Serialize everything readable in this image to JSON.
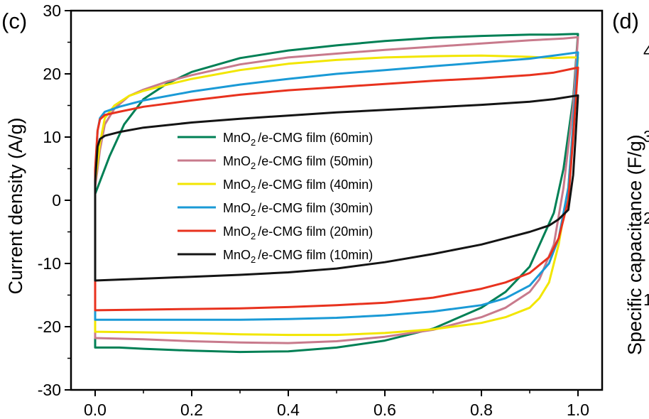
{
  "chart_data": {
    "type": "line",
    "panel_label": "(c)",
    "next_panel": {
      "label": "(d)",
      "ylabel": "Specific capacitance (F/g)",
      "ytick_fragments": [
        "4",
        "3",
        "2",
        "1"
      ]
    },
    "xlabel": "",
    "ylabel": "Current density (A/g)",
    "xlim": [
      -0.05,
      1.05
    ],
    "ylim": [
      -30,
      30
    ],
    "xticks": [
      0.0,
      0.2,
      0.4,
      0.6,
      0.8,
      1.0
    ],
    "xtick_labels": [
      "0.0",
      "0.2",
      "0.4",
      "0.6",
      "0.8",
      "1.0"
    ],
    "yticks": [
      -30,
      -20,
      -10,
      0,
      10,
      20,
      30
    ],
    "ytick_labels": [
      "-30",
      "-20",
      "-10",
      "0",
      "10",
      "20",
      "30"
    ],
    "legend_position": "center-left",
    "series": [
      {
        "name_main": "MnO",
        "name_sub": "2",
        "name_rest": "/e-CMG film (60min)",
        "color": "#008055",
        "upper": {
          "x": [
            0.0,
            0.01,
            0.03,
            0.06,
            0.1,
            0.15,
            0.2,
            0.3,
            0.4,
            0.5,
            0.6,
            0.7,
            0.8,
            0.9,
            0.95,
            0.99,
            1.0
          ],
          "y": [
            1,
            3,
            7,
            12,
            16,
            18.5,
            20.3,
            22.5,
            23.7,
            24.5,
            25.2,
            25.7,
            26.0,
            26.2,
            26.2,
            26.3,
            26.3
          ]
        },
        "lower": {
          "x": [
            1.0,
            0.99,
            0.97,
            0.95,
            0.9,
            0.85,
            0.8,
            0.7,
            0.6,
            0.5,
            0.4,
            0.3,
            0.2,
            0.1,
            0.05,
            0.0,
            0.0
          ],
          "y": [
            26.3,
            16,
            5,
            -2,
            -10.5,
            -14.5,
            -17,
            -20.3,
            -22.2,
            -23.3,
            -23.9,
            -24.0,
            -23.8,
            -23.5,
            -23.3,
            -23.3,
            1
          ]
        }
      },
      {
        "name_main": "MnO",
        "name_sub": "2",
        "name_rest": "/e-CMG film (50min)",
        "color": "#c87a8c",
        "upper": {
          "x": [
            0.0,
            0.01,
            0.02,
            0.04,
            0.07,
            0.1,
            0.15,
            0.2,
            0.3,
            0.4,
            0.5,
            0.6,
            0.7,
            0.8,
            0.9,
            0.97,
            1.0
          ],
          "y": [
            2,
            8,
            12,
            14.5,
            16.5,
            17.5,
            18.8,
            19.8,
            21.5,
            22.6,
            23.2,
            23.8,
            24.3,
            24.8,
            25.3,
            25.6,
            25.8
          ]
        },
        "lower": {
          "x": [
            1.0,
            0.99,
            0.97,
            0.95,
            0.92,
            0.9,
            0.85,
            0.8,
            0.7,
            0.6,
            0.5,
            0.4,
            0.3,
            0.2,
            0.1,
            0.0,
            0.0
          ],
          "y": [
            25.8,
            15,
            2,
            -7,
            -12.5,
            -14.5,
            -17,
            -18.5,
            -20.5,
            -21.6,
            -22.3,
            -22.6,
            -22.5,
            -22.3,
            -22.0,
            -21.8,
            2
          ]
        }
      },
      {
        "name_main": "MnO",
        "name_sub": "2",
        "name_rest": "/e-CMG film (40min)",
        "color": "#f2e600",
        "upper": {
          "x": [
            0.0,
            0.01,
            0.02,
            0.04,
            0.07,
            0.1,
            0.15,
            0.2,
            0.3,
            0.4,
            0.5,
            0.6,
            0.7,
            0.8,
            0.9,
            0.95,
            0.98,
            1.0
          ],
          "y": [
            3,
            9,
            13,
            15,
            16.5,
            17.3,
            18.3,
            19.2,
            20.6,
            21.6,
            22.2,
            22.6,
            22.8,
            22.9,
            22.7,
            22.5,
            22.6,
            22.6
          ]
        },
        "lower": {
          "x": [
            1.0,
            0.99,
            0.98,
            0.96,
            0.94,
            0.92,
            0.9,
            0.85,
            0.8,
            0.7,
            0.6,
            0.5,
            0.4,
            0.3,
            0.2,
            0.1,
            0.0,
            0.0
          ],
          "y": [
            22.6,
            12,
            2,
            -7,
            -13,
            -15.5,
            -17,
            -18.5,
            -19.4,
            -20.4,
            -21.0,
            -21.3,
            -21.3,
            -21.2,
            -21.0,
            -20.9,
            -20.8,
            3
          ]
        }
      },
      {
        "name_main": "MnO",
        "name_sub": "2",
        "name_rest": "/e-CMG film (30min)",
        "color": "#1a9ad6",
        "upper": {
          "x": [
            0.0,
            0.005,
            0.01,
            0.02,
            0.05,
            0.1,
            0.2,
            0.3,
            0.4,
            0.5,
            0.6,
            0.7,
            0.8,
            0.9,
            0.95,
            1.0
          ],
          "y": [
            4,
            11,
            13,
            14,
            14.8,
            15.8,
            17.2,
            18.3,
            19.2,
            20.0,
            20.6,
            21.2,
            21.8,
            22.4,
            22.9,
            23.4
          ]
        },
        "lower": {
          "x": [
            1.0,
            0.99,
            0.98,
            0.96,
            0.94,
            0.9,
            0.85,
            0.8,
            0.7,
            0.6,
            0.5,
            0.4,
            0.3,
            0.2,
            0.1,
            0.0,
            0.0
          ],
          "y": [
            23.4,
            12,
            2,
            -6,
            -10,
            -13.5,
            -15.5,
            -16.6,
            -17.6,
            -18.2,
            -18.6,
            -18.8,
            -18.9,
            -18.9,
            -18.9,
            -18.9,
            4
          ]
        }
      },
      {
        "name_main": "MnO",
        "name_sub": "2",
        "name_rest": "/e-CMG film (20min)",
        "color": "#e8321e",
        "upper": {
          "x": [
            0.0,
            0.005,
            0.01,
            0.02,
            0.05,
            0.1,
            0.2,
            0.3,
            0.4,
            0.5,
            0.6,
            0.7,
            0.8,
            0.9,
            0.95,
            1.0
          ],
          "y": [
            5,
            11,
            12.8,
            13.5,
            14.0,
            14.8,
            15.8,
            16.7,
            17.4,
            17.9,
            18.4,
            18.9,
            19.3,
            19.8,
            20.2,
            21.0
          ]
        },
        "lower": {
          "x": [
            1.0,
            0.99,
            0.98,
            0.96,
            0.94,
            0.9,
            0.85,
            0.8,
            0.7,
            0.6,
            0.5,
            0.4,
            0.3,
            0.2,
            0.1,
            0.0,
            0.0
          ],
          "y": [
            21.0,
            10,
            0,
            -6,
            -9,
            -11.5,
            -13,
            -14,
            -15.4,
            -16.2,
            -16.6,
            -16.9,
            -17.1,
            -17.2,
            -17.3,
            -17.4,
            5
          ]
        }
      },
      {
        "name_main": "MnO",
        "name_sub": "2",
        "name_rest": "/e-CMG film (10min)",
        "color": "#141414",
        "upper": {
          "x": [
            0.0,
            0.005,
            0.01,
            0.02,
            0.05,
            0.1,
            0.2,
            0.3,
            0.4,
            0.5,
            0.6,
            0.7,
            0.8,
            0.9,
            0.95,
            1.0
          ],
          "y": [
            3,
            8.5,
            9.7,
            10.2,
            10.8,
            11.5,
            12.3,
            12.9,
            13.4,
            13.9,
            14.3,
            14.7,
            15.1,
            15.6,
            16.0,
            16.6
          ]
        },
        "lower": {
          "x": [
            1.0,
            0.995,
            0.99,
            0.98,
            0.96,
            0.94,
            0.9,
            0.85,
            0.8,
            0.7,
            0.6,
            0.5,
            0.4,
            0.3,
            0.2,
            0.1,
            0.0,
            0.0
          ],
          "y": [
            16.6,
            10,
            4,
            -1.5,
            -3,
            -4,
            -5,
            -6,
            -7,
            -8.5,
            -9.8,
            -10.8,
            -11.4,
            -11.8,
            -12.1,
            -12.4,
            -12.7,
            3
          ]
        }
      }
    ]
  }
}
